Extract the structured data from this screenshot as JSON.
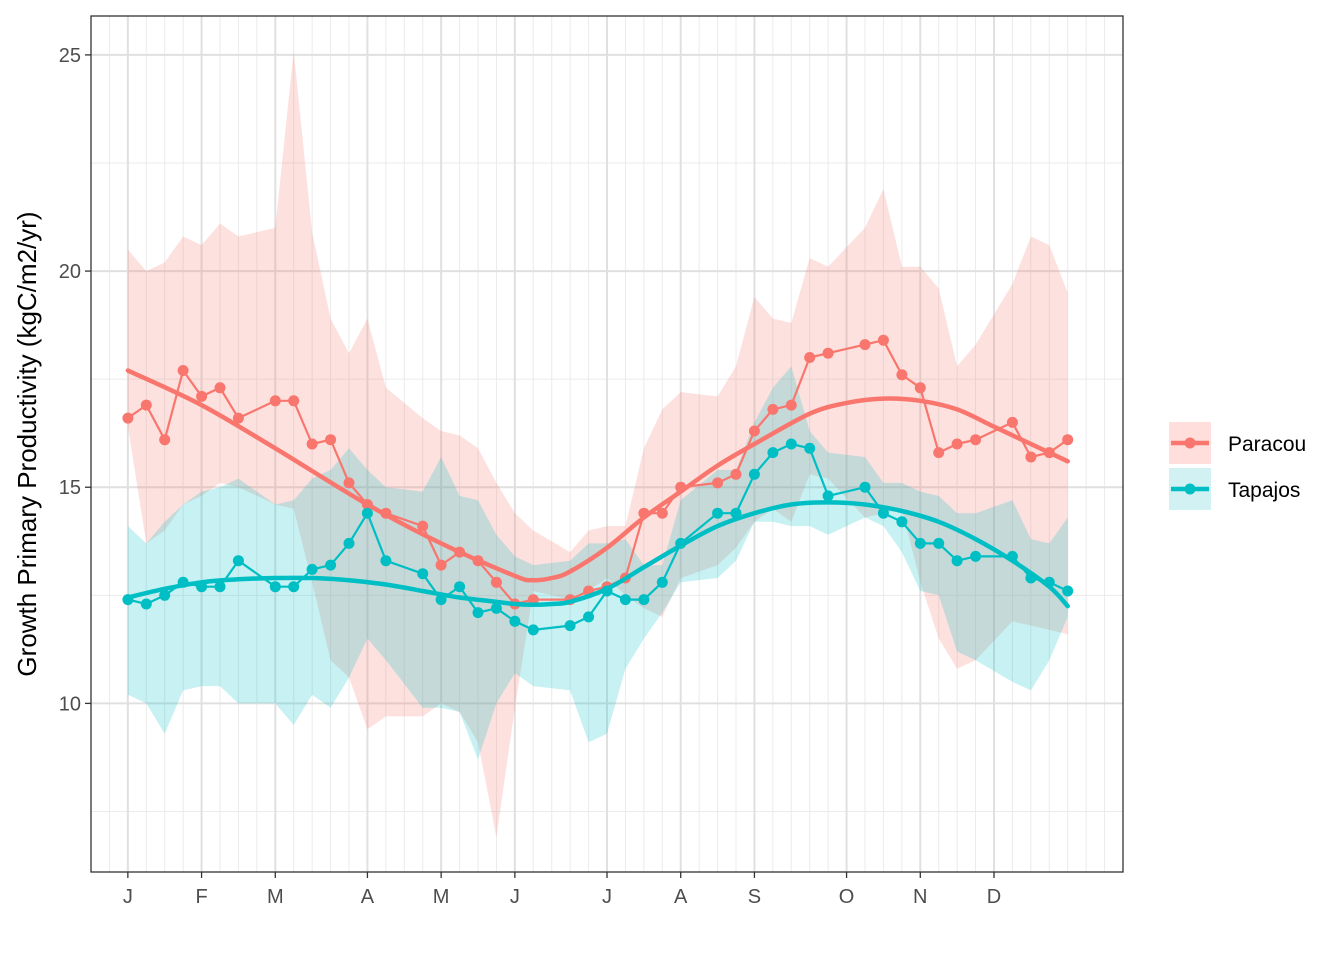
{
  "chart_data": {
    "type": "line",
    "title": "",
    "xlabel": "",
    "ylabel": "Growth Primary Productivity (kgC/m2/yr)",
    "x_tick_labels": [
      "J",
      "F",
      "M",
      "A",
      "M",
      "J",
      "J",
      "A",
      "S",
      "O",
      "N",
      "D"
    ],
    "x_tick_weeks": [
      1,
      5,
      9,
      14,
      18,
      22,
      27,
      31,
      35,
      40,
      44,
      48
    ],
    "xlim": [
      -1,
      55
    ],
    "ylim": [
      6.1,
      25.9
    ],
    "y_ticks": [
      10,
      15,
      20,
      25
    ],
    "grid": true,
    "legend_position": "right",
    "series": [
      {
        "name": "Paracou",
        "color": "#F8766D",
        "band_color": "#FFDEDC",
        "x": [
          1,
          2,
          3,
          4,
          5,
          6,
          7,
          8,
          9,
          10,
          11,
          12,
          13,
          14,
          15,
          16,
          17,
          18,
          19,
          20,
          21,
          22,
          23,
          24,
          25,
          26,
          27,
          28,
          29,
          30,
          31,
          32,
          33,
          34,
          35,
          36,
          37,
          38,
          39,
          40,
          41,
          42,
          43,
          44,
          45,
          46,
          47,
          48,
          49,
          50,
          51,
          52
        ],
        "values": [
          16.6,
          16.9,
          16.1,
          17.7,
          17.1,
          17.3,
          16.6,
          null,
          17.0,
          17.0,
          16.0,
          16.1,
          15.1,
          14.6,
          14.4,
          null,
          14.1,
          13.2,
          13.5,
          13.3,
          12.8,
          12.3,
          12.4,
          null,
          12.4,
          12.6,
          12.7,
          12.9,
          14.4,
          14.4,
          15.0,
          null,
          15.1,
          15.3,
          16.3,
          16.8,
          16.9,
          18.0,
          18.1,
          null,
          18.3,
          18.4,
          17.6,
          17.3,
          15.8,
          16.0,
          16.1,
          null,
          16.5,
          15.7,
          15.8,
          16.1
        ],
        "lower": [
          16.4,
          13.7,
          14.0,
          14.6,
          14.8,
          15.1,
          15.0,
          null,
          14.6,
          14.5,
          12.8,
          11.0,
          10.6,
          9.4,
          9.7,
          null,
          9.7,
          10.0,
          9.8,
          9.1,
          6.9,
          9.9,
          12.6,
          null,
          12.4,
          12.6,
          12.9,
          12.5,
          12.2,
          12.0,
          12.9,
          null,
          13.2,
          13.6,
          14.2,
          14.5,
          14.2,
          15.3,
          15.2,
          null,
          14.3,
          14.4,
          14.5,
          12.8,
          11.5,
          10.8,
          11.0,
          null,
          11.9,
          11.8,
          11.7,
          11.6
        ],
        "upper": [
          20.5,
          20.0,
          20.2,
          20.8,
          20.6,
          21.1,
          20.8,
          null,
          21.0,
          25.1,
          20.9,
          18.9,
          18.1,
          18.9,
          17.3,
          null,
          16.6,
          16.3,
          16.2,
          15.9,
          15.1,
          14.4,
          14.0,
          null,
          13.5,
          14.0,
          14.1,
          14.1,
          15.9,
          16.8,
          17.2,
          null,
          17.1,
          17.8,
          19.4,
          18.9,
          18.8,
          20.3,
          20.1,
          null,
          21.0,
          21.9,
          20.1,
          20.1,
          19.6,
          17.8,
          18.3,
          null,
          19.7,
          20.8,
          20.6,
          19.5
        ],
        "smooth_x": [
          1,
          5,
          9,
          14,
          18,
          22,
          23,
          24,
          25,
          27,
          29,
          31,
          33,
          35,
          38,
          40,
          42,
          44,
          46,
          48,
          50,
          52
        ],
        "smooth_y": [
          17.7,
          16.9,
          15.9,
          14.6,
          13.7,
          12.95,
          12.85,
          12.9,
          13.05,
          13.6,
          14.3,
          14.9,
          15.5,
          16.0,
          16.7,
          16.95,
          17.05,
          17.0,
          16.8,
          16.4,
          16.0,
          15.6
        ]
      },
      {
        "name": "Tapajos",
        "color": "#00BFC4",
        "band_color": "#D1F1F3",
        "x": [
          1,
          2,
          3,
          4,
          5,
          6,
          7,
          8,
          9,
          10,
          11,
          12,
          13,
          14,
          15,
          16,
          17,
          18,
          19,
          20,
          21,
          22,
          23,
          24,
          25,
          26,
          27,
          28,
          29,
          30,
          31,
          32,
          33,
          34,
          35,
          36,
          37,
          38,
          39,
          40,
          41,
          42,
          43,
          44,
          45,
          46,
          47,
          48,
          49,
          50,
          51,
          52
        ],
        "values": [
          12.4,
          12.3,
          12.5,
          12.8,
          12.7,
          12.7,
          13.3,
          null,
          12.7,
          12.7,
          13.1,
          13.2,
          13.7,
          14.4,
          13.3,
          null,
          13.0,
          12.4,
          12.7,
          12.1,
          12.2,
          11.9,
          11.7,
          null,
          11.8,
          12.0,
          12.6,
          12.4,
          12.4,
          12.8,
          13.7,
          null,
          14.4,
          14.4,
          15.3,
          15.8,
          16.0,
          15.9,
          14.8,
          null,
          15.0,
          14.4,
          14.2,
          13.7,
          13.7,
          13.3,
          13.4,
          null,
          13.4,
          12.9,
          12.8,
          12.6
        ],
        "lower": [
          10.2,
          10.0,
          9.3,
          10.3,
          10.4,
          10.4,
          10.0,
          null,
          10.0,
          9.5,
          10.2,
          9.9,
          10.6,
          11.5,
          11.0,
          null,
          9.9,
          9.9,
          9.8,
          8.7,
          10.0,
          10.7,
          10.4,
          null,
          10.3,
          9.1,
          9.3,
          10.8,
          11.5,
          12.1,
          12.8,
          null,
          12.9,
          13.3,
          14.2,
          14.2,
          14.1,
          14.1,
          13.9,
          null,
          14.3,
          14.1,
          13.5,
          12.6,
          12.5,
          11.2,
          11.0,
          null,
          10.5,
          10.3,
          11.0,
          12.0
        ],
        "upper": [
          14.1,
          13.7,
          14.2,
          14.6,
          14.9,
          15.0,
          15.2,
          null,
          14.6,
          14.7,
          15.2,
          15.4,
          15.9,
          15.4,
          15.0,
          null,
          14.9,
          15.7,
          14.8,
          14.7,
          13.9,
          13.4,
          13.2,
          null,
          13.3,
          13.7,
          13.7,
          13.8,
          13.2,
          13.2,
          14.7,
          null,
          15.4,
          15.4,
          16.5,
          17.3,
          17.8,
          16.3,
          15.8,
          null,
          15.7,
          15.1,
          15.1,
          14.9,
          14.8,
          14.4,
          14.4,
          null,
          14.7,
          13.8,
          13.7,
          14.3
        ],
        "smooth_x": [
          1,
          3,
          5,
          7,
          9,
          11,
          13,
          15,
          17,
          19,
          21,
          22,
          23,
          24,
          25,
          27,
          29,
          31,
          33,
          35,
          37,
          39,
          41,
          43,
          45,
          47,
          49,
          51,
          52
        ],
        "smooth_y": [
          12.45,
          12.65,
          12.8,
          12.87,
          12.9,
          12.9,
          12.85,
          12.75,
          12.6,
          12.45,
          12.35,
          12.3,
          12.28,
          12.3,
          12.35,
          12.65,
          13.15,
          13.65,
          14.1,
          14.4,
          14.6,
          14.65,
          14.6,
          14.45,
          14.2,
          13.8,
          13.3,
          12.7,
          12.25
        ]
      }
    ]
  }
}
